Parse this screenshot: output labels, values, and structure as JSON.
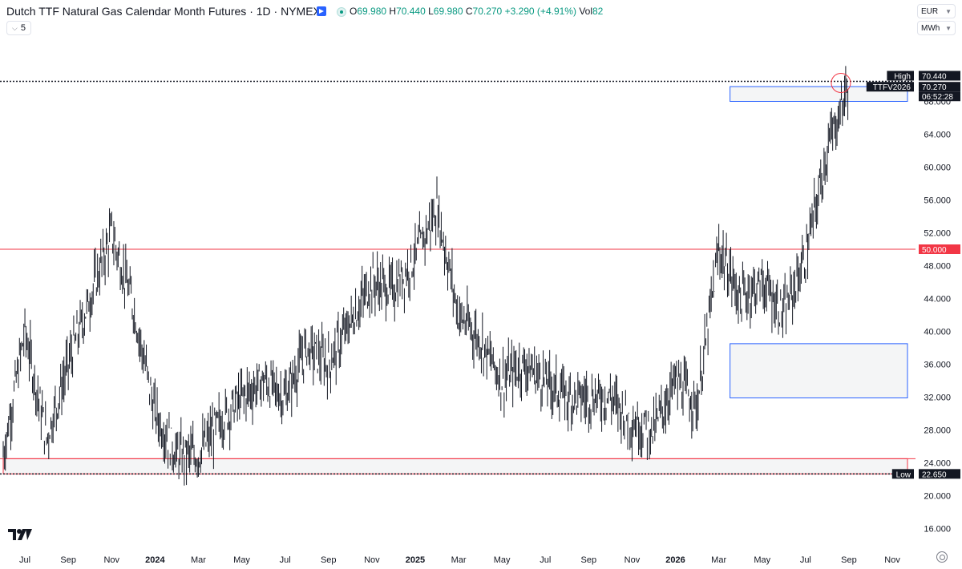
{
  "header": {
    "title": "Dutch TTF Natural Gas Calendar Month Futures · 1D · NYMEX",
    "ohlc": {
      "o_label": "O",
      "o": "69.980",
      "h_label": "H",
      "h": "70.440",
      "l_label": "L",
      "l": "69.980",
      "c_label": "C",
      "c": "70.270",
      "change": "+3.290 (+4.91%)",
      "vol_label": "Vol",
      "vol": "82"
    },
    "interval_value": "5",
    "currency": "EUR",
    "unit": "MWh"
  },
  "colors": {
    "up": "#089981",
    "red": "#f23645",
    "blue": "#2962ff",
    "grid": "#f0f3fa",
    "text": "#131722"
  },
  "chart_data": {
    "type": "candlestick",
    "title": "Dutch TTF Natural Gas Calendar Month Futures · 1D · NYMEX",
    "y_range": [
      14.0,
      74.0
    ],
    "x_range": [
      "2023-06",
      "2026-11"
    ],
    "y_ticks": [
      "68.000",
      "64.000",
      "60.000",
      "56.000",
      "52.000",
      "48.000",
      "44.000",
      "40.000",
      "36.000",
      "32.000",
      "28.000",
      "24.000",
      "20.000",
      "16.000"
    ],
    "x_ticks": [
      "Jul",
      "Sep",
      "Nov",
      "2024",
      "Mar",
      "May",
      "Jul",
      "Sep",
      "Nov",
      "2025",
      "Mar",
      "May",
      "Jul",
      "Sep",
      "Nov",
      "2026",
      "Mar",
      "May",
      "Jul",
      "Sep",
      "Nov"
    ],
    "price_labels": [
      {
        "tag": "High",
        "value": "70.440"
      },
      {
        "tag": "TTFV2026",
        "value": "70.270"
      },
      {
        "tag": "",
        "value": "06:52:28"
      },
      {
        "tag": "",
        "value": "50.000"
      },
      {
        "tag": "Low",
        "value": "22.650"
      }
    ],
    "horizontal_lines": [
      {
        "value": 50.0,
        "color": "red"
      },
      {
        "value": 24.5,
        "color": "red"
      },
      {
        "value": 70.44,
        "style": "dotted"
      },
      {
        "value": 22.65,
        "style": "dotted"
      }
    ],
    "zones": [
      {
        "from": 68.0,
        "to": 69.8,
        "start": "2026-03",
        "color": "blue"
      },
      {
        "from": 31.9,
        "to": 38.5,
        "start": "2026-03",
        "color": "blue"
      },
      {
        "from": 22.65,
        "to": 24.5,
        "start": "2023-06",
        "color": "red"
      }
    ],
    "close_path": [
      [
        "2023-06",
        25
      ],
      [
        "2023-07",
        40
      ],
      [
        "2023-08",
        27
      ],
      [
        "2023-09",
        36
      ],
      [
        "2023-10",
        44
      ],
      [
        "2023-11",
        52
      ],
      [
        "2023-12",
        43
      ],
      [
        "2024-01",
        30
      ],
      [
        "2024-02",
        25
      ],
      [
        "2024-03",
        25
      ],
      [
        "2024-04",
        29
      ],
      [
        "2024-05",
        32
      ],
      [
        "2024-06",
        34
      ],
      [
        "2024-07",
        32
      ],
      [
        "2024-08",
        38
      ],
      [
        "2024-09",
        36
      ],
      [
        "2024-10",
        41
      ],
      [
        "2024-11",
        46
      ],
      [
        "2024-12",
        45
      ],
      [
        "2025-01",
        49
      ],
      [
        "2025-02",
        55
      ],
      [
        "2025-03",
        42
      ],
      [
        "2025-04",
        39
      ],
      [
        "2025-05",
        34
      ],
      [
        "2025-06",
        36
      ],
      [
        "2025-07",
        34
      ],
      [
        "2025-08",
        32
      ],
      [
        "2025-09",
        32
      ],
      [
        "2025-10",
        32
      ],
      [
        "2025-11",
        29
      ],
      [
        "2025-12",
        28
      ],
      [
        "2026-01",
        34
      ],
      [
        "2026-02",
        31
      ],
      [
        "2026-03",
        50
      ],
      [
        "2026-04",
        44
      ],
      [
        "2026-05",
        46
      ],
      [
        "2026-06",
        42
      ],
      [
        "2026-07",
        49
      ],
      [
        "2026-08",
        62
      ],
      [
        "2026-09",
        70.27
      ]
    ]
  }
}
